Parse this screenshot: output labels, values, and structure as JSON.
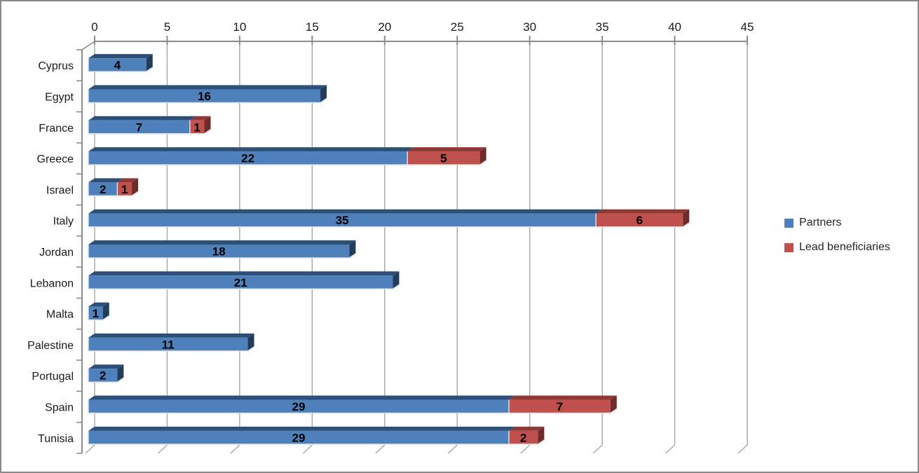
{
  "chart_data": {
    "type": "bar",
    "orientation": "horizontal",
    "stacked": true,
    "style": "3d-bevel",
    "title": "",
    "xlabel": "",
    "ylabel": "",
    "categories": [
      "Cyprus",
      "Egypt",
      "France",
      "Greece",
      "Israel",
      "Italy",
      "Jordan",
      "Lebanon",
      "Malta",
      "Palestine",
      "Portugal",
      "Spain",
      "Tunisia"
    ],
    "series": [
      {
        "name": "Partners",
        "color": "#4E80BC",
        "top_color": "#2E5077",
        "side_color": "#223C59",
        "edge_color": "#D6E1F0",
        "values": [
          4,
          16,
          7,
          22,
          2,
          35,
          18,
          21,
          1,
          11,
          2,
          29,
          29
        ]
      },
      {
        "name": "Lead beneficiaries",
        "color": "#C0504D",
        "top_color": "#8F3936",
        "side_color": "#6E2B29",
        "edge_color": "#EFD9D8",
        "values": [
          0,
          0,
          1,
          5,
          1,
          6,
          0,
          0,
          0,
          0,
          0,
          7,
          2
        ]
      }
    ],
    "x_axis": {
      "position": "top",
      "min": 0,
      "max": 45,
      "tick_step": 5,
      "ticks": [
        "0",
        "5",
        "10",
        "15",
        "20",
        "25",
        "30",
        "35",
        "40",
        "45"
      ]
    },
    "grid": true,
    "data_labels": true,
    "legend_position": "right"
  },
  "figure": {
    "background": "#FFFFFF",
    "border_color": "#898989",
    "gridline_color": "#A6A6A6",
    "axis_color": "#8C8C8C",
    "tick_label_color": "#1A1A1A",
    "data_label_color": "#000000"
  }
}
